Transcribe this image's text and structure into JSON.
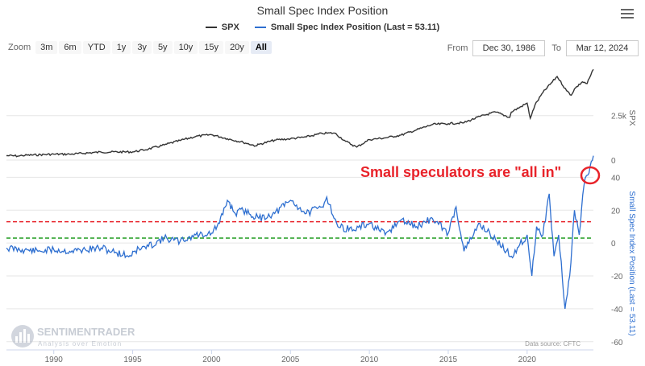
{
  "chart_data": {
    "type": "line",
    "title": "Small Spec Index Position",
    "credit": "Data source: CFTC",
    "annotation": "Small speculators are \"all in\"",
    "watermark": {
      "brand": "SENTIMENTRADER",
      "tagline": "Analysis over Emotion"
    },
    "x_ticks": [
      "1990",
      "1995",
      "2000",
      "2005",
      "2010",
      "2015",
      "2020"
    ],
    "x_range": [
      1987.0,
      2024.2
    ],
    "panels": [
      {
        "axis_title": "SPX",
        "y_ticks": [
          "2.5k",
          "0"
        ],
        "y_range": [
          0,
          5200
        ]
      },
      {
        "axis_title": "Small Spec Index Position (Last = 53.11)",
        "y_ticks": [
          "40",
          "20",
          "0",
          "-20",
          "-40",
          "-60"
        ],
        "y_range": [
          -65,
          50
        ],
        "reference_lines": [
          {
            "value": 13,
            "color": "#e8232a"
          },
          {
            "value": 3,
            "color": "#1e9b1e"
          }
        ]
      }
    ],
    "series": [
      {
        "name": "SPX",
        "color": "#333333",
        "x": [
          1987.0,
          1987.8,
          1988,
          1990,
          1991,
          1993,
          1995,
          1996,
          1997,
          1998,
          1999,
          2000,
          2001,
          2002,
          2002.8,
          2003,
          2004,
          2005,
          2006,
          2007,
          2007.8,
          2008.5,
          2009.2,
          2010,
          2011,
          2012,
          2013,
          2014,
          2015,
          2016,
          2017,
          2018,
          2018.9,
          2019,
          2020,
          2020.2,
          2020.5,
          2021,
          2021.9,
          2022.5,
          2022.8,
          2023,
          2023.5,
          2023.8,
          2024.2
        ],
        "values": [
          250,
          230,
          260,
          330,
          330,
          450,
          460,
          620,
          850,
          1100,
          1330,
          1430,
          1200,
          1000,
          800,
          880,
          1120,
          1200,
          1300,
          1500,
          1520,
          1050,
          730,
          1150,
          1250,
          1400,
          1700,
          2000,
          2050,
          2100,
          2450,
          2700,
          2400,
          2700,
          3200,
          2350,
          3100,
          3800,
          4700,
          3900,
          3650,
          4000,
          4400,
          4300,
          5100
        ]
      },
      {
        "name": "Small Spec Index Position (Last = 53.11)",
        "color": "#2e6fd0",
        "x": [
          1987.0,
          1988,
          1989,
          1990,
          1991,
          1992,
          1993,
          1994,
          1994.9,
          1995,
          1996,
          1997,
          1998,
          1999,
          2000,
          2000.5,
          2001,
          2001.5,
          2002,
          2003,
          2004,
          2005,
          2006,
          2007,
          2007.3,
          2008,
          2009,
          2010,
          2011,
          2012,
          2013,
          2014,
          2015,
          2015.5,
          2016,
          2017,
          2018,
          2019,
          2020,
          2020.3,
          2020.6,
          2021,
          2021.4,
          2021.7,
          2022,
          2022.4,
          2022.7,
          2023,
          2023.3,
          2023.6,
          2024.0,
          2024.2
        ],
        "values": [
          -3,
          -4,
          -5,
          -4,
          -5,
          -4,
          -3,
          -6,
          -8,
          -5,
          -2,
          3,
          1,
          5,
          6,
          12,
          26,
          18,
          20,
          15,
          18,
          26,
          18,
          22,
          28,
          10,
          8,
          12,
          5,
          14,
          10,
          15,
          6,
          22,
          -5,
          12,
          2,
          -8,
          5,
          -20,
          10,
          5,
          30,
          -8,
          5,
          -40,
          -20,
          20,
          5,
          35,
          47,
          53.11
        ]
      }
    ]
  }
}
